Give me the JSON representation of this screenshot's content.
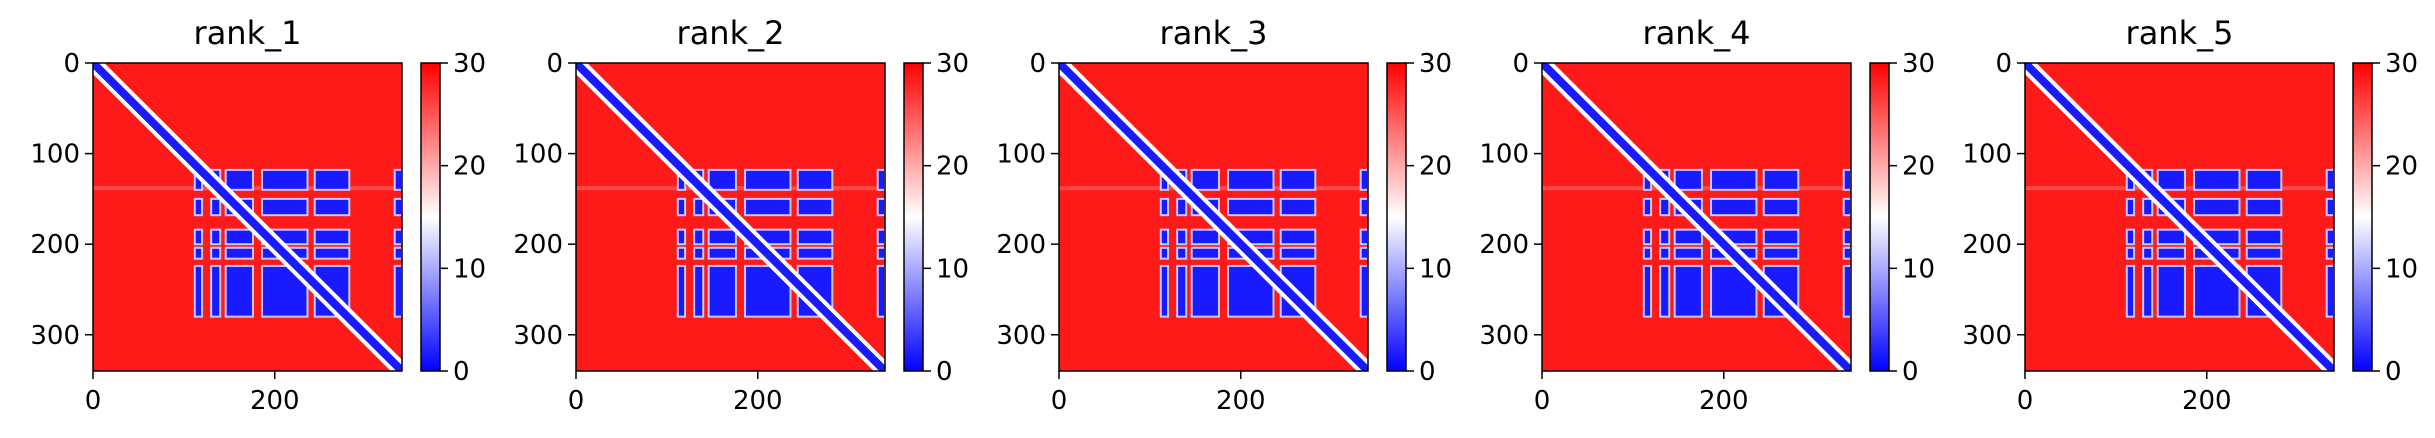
{
  "chart_data": [
    {
      "type": "heatmap",
      "title": "rank_1",
      "xticks": [
        0,
        200
      ],
      "yticks": [
        0,
        100,
        200,
        300
      ],
      "xlim": [
        0,
        340
      ],
      "ylim": [
        340,
        0
      ],
      "colorbar": {
        "range": [
          0,
          30
        ],
        "ticks": [
          0,
          10,
          20,
          30
        ],
        "colors": [
          "#0000ff",
          "#ffffff",
          "#ff0000"
        ]
      },
      "diagonal_band": true,
      "low_blocks_y": [
        [
          118,
          140
        ],
        [
          150,
          168
        ],
        [
          184,
          200
        ],
        [
          204,
          216
        ],
        [
          224,
          280
        ]
      ],
      "low_blocks_x": [
        [
          112,
          120
        ],
        [
          130,
          140
        ],
        [
          146,
          176
        ],
        [
          186,
          236
        ],
        [
          244,
          282
        ],
        [
          332,
          340
        ]
      ]
    },
    {
      "type": "heatmap",
      "title": "rank_2",
      "xticks": [
        0,
        200
      ],
      "yticks": [
        0,
        100,
        200,
        300
      ],
      "xlim": [
        0,
        340
      ],
      "ylim": [
        340,
        0
      ],
      "colorbar": {
        "range": [
          0,
          30
        ],
        "ticks": [
          0,
          10,
          20,
          30
        ],
        "colors": [
          "#0000ff",
          "#ffffff",
          "#ff0000"
        ]
      },
      "diagonal_band": true,
      "low_blocks_y": [
        [
          118,
          140
        ],
        [
          150,
          168
        ],
        [
          184,
          200
        ],
        [
          204,
          216
        ],
        [
          224,
          280
        ]
      ],
      "low_blocks_x": [
        [
          112,
          120
        ],
        [
          130,
          140
        ],
        [
          146,
          176
        ],
        [
          186,
          236
        ],
        [
          244,
          282
        ],
        [
          332,
          340
        ]
      ]
    },
    {
      "type": "heatmap",
      "title": "rank_3",
      "xticks": [
        0,
        200
      ],
      "yticks": [
        0,
        100,
        200,
        300
      ],
      "xlim": [
        0,
        340
      ],
      "ylim": [
        340,
        0
      ],
      "colorbar": {
        "range": [
          0,
          30
        ],
        "ticks": [
          0,
          10,
          20,
          30
        ],
        "colors": [
          "#0000ff",
          "#ffffff",
          "#ff0000"
        ]
      },
      "diagonal_band": true,
      "low_blocks_y": [
        [
          118,
          140
        ],
        [
          150,
          168
        ],
        [
          184,
          200
        ],
        [
          204,
          216
        ],
        [
          224,
          280
        ]
      ],
      "low_blocks_x": [
        [
          112,
          120
        ],
        [
          130,
          140
        ],
        [
          146,
          176
        ],
        [
          186,
          236
        ],
        [
          244,
          282
        ],
        [
          332,
          340
        ]
      ]
    },
    {
      "type": "heatmap",
      "title": "rank_4",
      "xticks": [
        0,
        200
      ],
      "yticks": [
        0,
        100,
        200,
        300
      ],
      "xlim": [
        0,
        340
      ],
      "ylim": [
        340,
        0
      ],
      "colorbar": {
        "range": [
          0,
          30
        ],
        "ticks": [
          0,
          10,
          20,
          30
        ],
        "colors": [
          "#0000ff",
          "#ffffff",
          "#ff0000"
        ]
      },
      "diagonal_band": true,
      "low_blocks_y": [
        [
          118,
          140
        ],
        [
          150,
          168
        ],
        [
          184,
          200
        ],
        [
          204,
          216
        ],
        [
          224,
          280
        ]
      ],
      "low_blocks_x": [
        [
          112,
          120
        ],
        [
          130,
          140
        ],
        [
          146,
          176
        ],
        [
          186,
          236
        ],
        [
          244,
          282
        ],
        [
          332,
          340
        ]
      ]
    },
    {
      "type": "heatmap",
      "title": "rank_5",
      "xticks": [
        0,
        200
      ],
      "yticks": [
        0,
        100,
        200,
        300
      ],
      "xlim": [
        0,
        340
      ],
      "ylim": [
        340,
        0
      ],
      "colorbar": {
        "range": [
          0,
          30
        ],
        "ticks": [
          0,
          10,
          20,
          30
        ],
        "colors": [
          "#0000ff",
          "#ffffff",
          "#ff0000"
        ]
      },
      "diagonal_band": true,
      "low_blocks_y": [
        [
          118,
          140
        ],
        [
          150,
          168
        ],
        [
          184,
          200
        ],
        [
          204,
          216
        ],
        [
          224,
          280
        ]
      ],
      "low_blocks_x": [
        [
          112,
          120
        ],
        [
          130,
          140
        ],
        [
          146,
          176
        ],
        [
          186,
          236
        ],
        [
          244,
          282
        ],
        [
          332,
          340
        ]
      ]
    }
  ]
}
